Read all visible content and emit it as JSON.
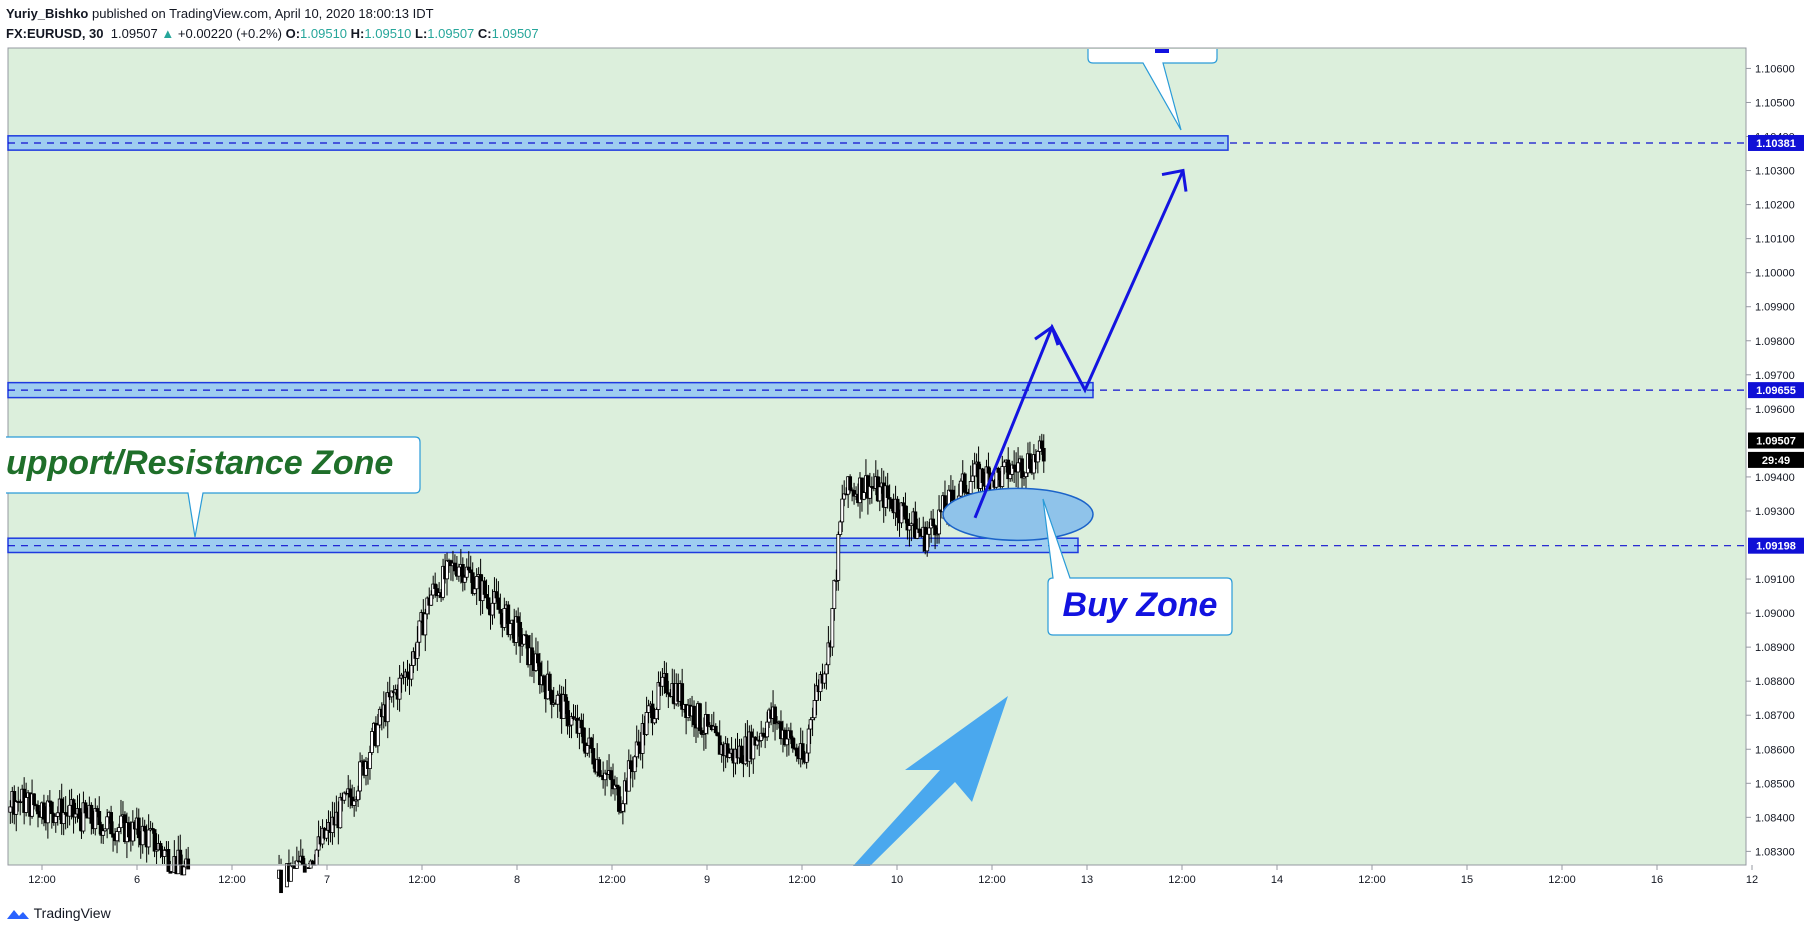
{
  "header": {
    "author": "Yuriy_Bishko",
    "published_text": " published on TradingView.com, April 10, 2020 18:00:13 IDT",
    "symbol": "FX:EURUSD, 30",
    "last": "1.09507",
    "change_arrow": "▲",
    "change": "+0.00220 (+0.2%)",
    "o_label": "O:",
    "o_value": "1.09510",
    "h_label": "H:",
    "h_value": "1.09510",
    "l_label": "L:",
    "l_value": "1.09507",
    "c_label": "C:",
    "c_value": "1.09507"
  },
  "footer": {
    "brand": "TradingView"
  },
  "colors": {
    "background": "#dcefdc",
    "zone_fill": "#9ecdf0",
    "zone_stroke": "#1e3adf",
    "dash_line": "#1010d0",
    "arrow": "#1414e0",
    "big_arrow": "#4aa8ee",
    "label_green": "#1f6f2a",
    "label_blue": "#1212e0",
    "candle": "#000000"
  },
  "chart_data": {
    "type": "candlestick",
    "symbol": "FX:EURUSD",
    "interval": "30",
    "ylim": [
      1.0826,
      1.1066
    ],
    "y_ticks": [
      "1.10600",
      "1.10500",
      "1.10400",
      "1.10300",
      "1.10200",
      "1.10100",
      "1.10000",
      "1.09900",
      "1.09800",
      "1.09700",
      "1.09600",
      "1.09400",
      "1.09300",
      "1.09100",
      "1.09000",
      "1.08900",
      "1.08800",
      "1.08700",
      "1.08600",
      "1.08500",
      "1.08400",
      "1.08300"
    ],
    "x_ticks": [
      "12:00",
      "6",
      "12:00",
      "7",
      "12:00",
      "8",
      "12:00",
      "9",
      "12:00",
      "10",
      "12:00",
      "13",
      "12:00",
      "14",
      "12:00",
      "15",
      "12:00",
      "16",
      "12"
    ],
    "price_labels": [
      {
        "text": "1.10381",
        "value": 1.10381,
        "style": "zone"
      },
      {
        "text": "1.09655",
        "value": 1.09655,
        "style": "zone"
      },
      {
        "text": "1.09507",
        "value": 1.09507,
        "style": "last"
      },
      {
        "text": "29:49",
        "value": 1.0945,
        "style": "timer"
      },
      {
        "text": "1.09198",
        "value": 1.09198,
        "style": "zone"
      }
    ],
    "zones": [
      {
        "value": 1.10381,
        "high": 1.10402,
        "low": 1.1036
      },
      {
        "value": 1.09655,
        "high": 1.09677,
        "low": 1.09633
      },
      {
        "value": 1.09198,
        "high": 1.0922,
        "low": 1.09178
      }
    ],
    "candles_path": [
      [
        0.0,
        1.085
      ],
      [
        2.0,
        1.0835
      ],
      [
        2.5,
        1.0822
      ],
      [
        3.2,
        1.0815
      ],
      [
        3.8,
        1.083
      ],
      [
        4.2,
        1.0848
      ],
      [
        4.5,
        1.087
      ],
      [
        4.8,
        1.0885
      ],
      [
        5.0,
        1.0905
      ],
      [
        5.3,
        1.0915
      ],
      [
        5.6,
        1.0905
      ],
      [
        5.9,
        1.0895
      ],
      [
        6.2,
        1.088
      ],
      [
        6.5,
        1.0868
      ],
      [
        6.8,
        1.0855
      ],
      [
        7.0,
        1.0845
      ],
      [
        7.3,
        1.087
      ],
      [
        7.5,
        1.088
      ],
      [
        7.8,
        1.087
      ],
      [
        8.0,
        1.0862
      ],
      [
        8.2,
        1.0858
      ],
      [
        8.4,
        1.0862
      ],
      [
        8.6,
        1.087
      ],
      [
        8.8,
        1.0862
      ],
      [
        8.95,
        1.0855
      ],
      [
        9.0,
        1.087
      ],
      [
        9.2,
        1.089
      ],
      [
        9.3,
        1.092
      ],
      [
        9.35,
        1.0935
      ],
      [
        9.6,
        1.0938
      ],
      [
        9.9,
        1.0932
      ],
      [
        10.2,
        1.0922
      ],
      [
        10.4,
        1.093
      ],
      [
        10.7,
        1.094
      ],
      [
        11.0,
        1.094
      ],
      [
        11.3,
        1.0945
      ],
      [
        11.6,
        1.0948
      ],
      [
        11.8,
        1.095
      ],
      [
        11.95,
        1.09507
      ]
    ],
    "annotations": [
      {
        "text": "upport/Resistance Zone",
        "type": "callout"
      },
      {
        "text": "Buy Zone",
        "type": "callout"
      }
    ]
  }
}
